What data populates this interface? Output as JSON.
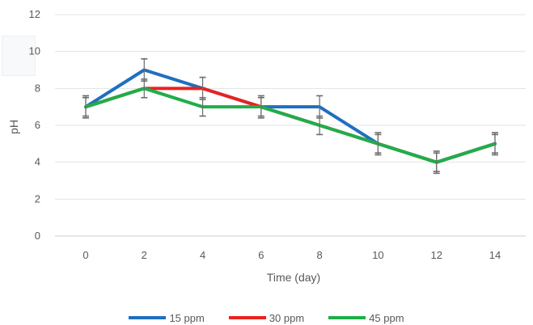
{
  "chart_data": {
    "type": "line",
    "title": "",
    "xlabel": "Time (day)",
    "ylabel": "pH",
    "x": [
      0,
      2,
      4,
      6,
      8,
      10,
      12,
      14
    ],
    "x_tick_labels": [
      "0",
      "2",
      "4",
      "6",
      "8",
      "10",
      "12",
      "14"
    ],
    "ylim": [
      0,
      12
    ],
    "y_ticks": [
      0,
      2,
      4,
      6,
      8,
      10,
      12
    ],
    "y_tick_labels": [
      "0",
      "2",
      "4",
      "6",
      "8",
      "10",
      "12"
    ],
    "grid": "horizontal",
    "legend_position": "bottom",
    "series": [
      {
        "name": "15 ppm",
        "color": "#1f6fbf",
        "values": [
          7,
          9,
          8,
          7,
          7,
          5,
          4,
          5
        ],
        "error": [
          0.6,
          0.6,
          0.6,
          0.6,
          0.6,
          0.6,
          0.6,
          0.6
        ]
      },
      {
        "name": "30 ppm",
        "color": "#e8231f",
        "values": [
          7,
          8,
          8,
          7,
          6,
          5,
          4,
          5
        ],
        "error": [
          0,
          0,
          0,
          0,
          0,
          0,
          0,
          0
        ]
      },
      {
        "name": "45 ppm",
        "color": "#1fae48",
        "values": [
          7,
          8,
          7,
          7,
          6,
          5,
          4,
          5
        ],
        "error": [
          0.5,
          0.5,
          0.5,
          0.5,
          0.5,
          0.5,
          0.5,
          0.5
        ]
      }
    ]
  }
}
